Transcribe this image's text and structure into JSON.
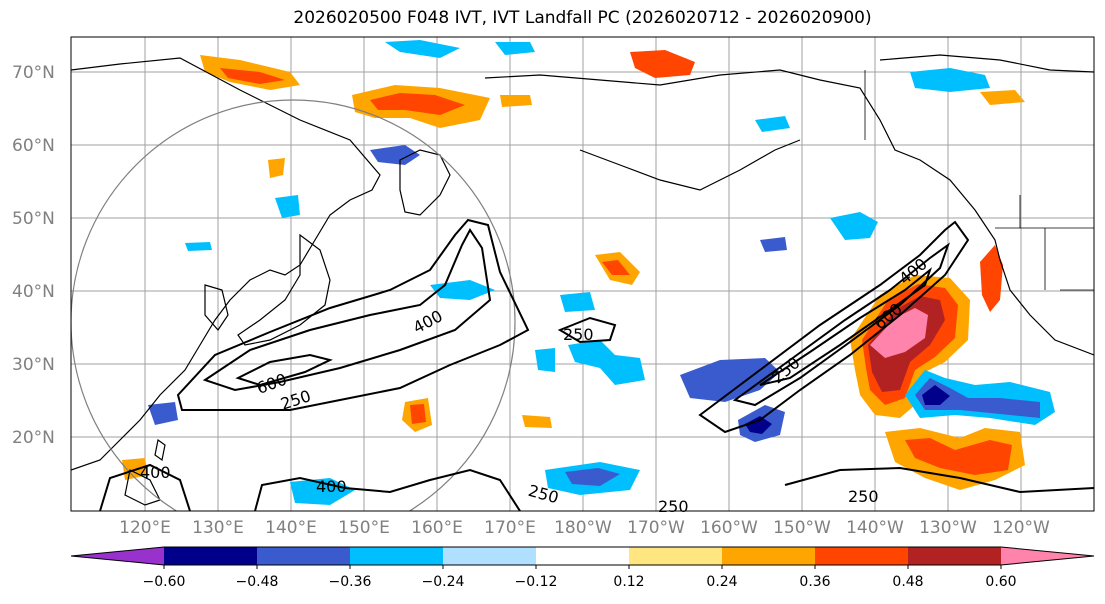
{
  "title": "2026020500 F048 IVT, IVT Landfall PC (2026020712 - 2026020900)",
  "lat_labels": [
    "70°N",
    "60°N",
    "50°N",
    "40°N",
    "30°N",
    "20°N"
  ],
  "lon_labels": [
    "120°E",
    "130°E",
    "140°E",
    "150°E",
    "160°E",
    "170°E",
    "180°W",
    "170°W",
    "160°W",
    "150°W",
    "140°W",
    "130°W",
    "120°W"
  ],
  "contour_labels": [
    "400",
    "600",
    "250",
    "250",
    "400",
    "600",
    "250",
    "400",
    "250",
    "250",
    "400",
    "250",
    "250",
    "400"
  ],
  "colorbar": {
    "colors": [
      "#9932cc",
      "#00008b",
      "#3a5bcd",
      "#00bfff",
      "#b0e0ff",
      "#ffffff",
      "#ffe680",
      "#ffa500",
      "#ff4500",
      "#b22222",
      "#ff83aa"
    ],
    "tick_labels": [
      "−0.60",
      "−0.48",
      "−0.36",
      "−0.24",
      "−0.12",
      "0.12",
      "0.24",
      "0.36",
      "0.48",
      "0.60"
    ]
  },
  "colors": {
    "contour": "#000000",
    "grid": "#999999",
    "coast": "#000000"
  }
}
